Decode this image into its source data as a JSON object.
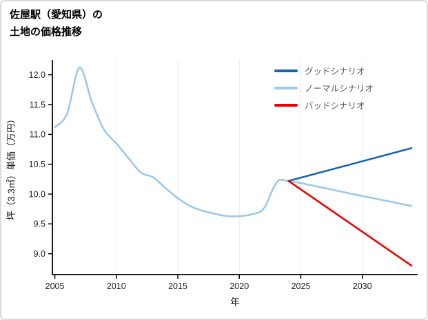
{
  "chart_data": {
    "type": "line",
    "title": "佐屋駅（愛知県）の土地の価格推移",
    "title_lines": [
      "佐屋駅（愛知県）の",
      "土地の価格推移"
    ],
    "xlabel": "年",
    "ylabel": "坪（3.3㎡）単価（万円）",
    "xlim": [
      2004.8,
      2034.5
    ],
    "ylim": [
      8.65,
      12.25
    ],
    "xticks": [
      2005,
      2010,
      2015,
      2020,
      2025,
      2030
    ],
    "xtick_labels": [
      "2005",
      "2010",
      "2015",
      "2020",
      "2025",
      "2030"
    ],
    "yticks": [
      9.0,
      9.5,
      10.0,
      10.5,
      11.0,
      11.5,
      12.0
    ],
    "ytick_labels": [
      "9.0",
      "9.5",
      "10.0",
      "10.5",
      "11.0",
      "11.5",
      "12.0"
    ],
    "grid": "vertical-only",
    "legend_position": "top-right",
    "series": [
      {
        "name": "ノーマルシナリオ",
        "color": "#9cc8ec",
        "x": [
          2005,
          2006,
          2007,
          2008,
          2009,
          2010,
          2011,
          2012,
          2013,
          2014,
          2015,
          2016,
          2017,
          2018,
          2019,
          2020,
          2021,
          2022,
          2023,
          2024,
          2029,
          2034
        ],
        "y": [
          11.12,
          11.35,
          12.12,
          11.55,
          11.08,
          10.85,
          10.6,
          10.36,
          10.28,
          10.1,
          9.93,
          9.8,
          9.72,
          9.67,
          9.63,
          9.63,
          9.66,
          9.76,
          10.18,
          10.22,
          10.01,
          9.8
        ]
      },
      {
        "name": "グッドシナリオ",
        "color": "#1664b4",
        "x": [
          2024,
          2034
        ],
        "y": [
          10.22,
          10.77
        ]
      },
      {
        "name": "バッドシナリオ",
        "color": "#ee0000",
        "x": [
          2024,
          2034
        ],
        "y": [
          10.22,
          8.8
        ]
      }
    ],
    "legend": [
      {
        "label": "グッドシナリオ",
        "color": "#1664b4"
      },
      {
        "label": "ノーマルシナリオ",
        "color": "#9cc8ec"
      },
      {
        "label": "バッドシナリオ",
        "color": "#ee0000"
      }
    ]
  }
}
